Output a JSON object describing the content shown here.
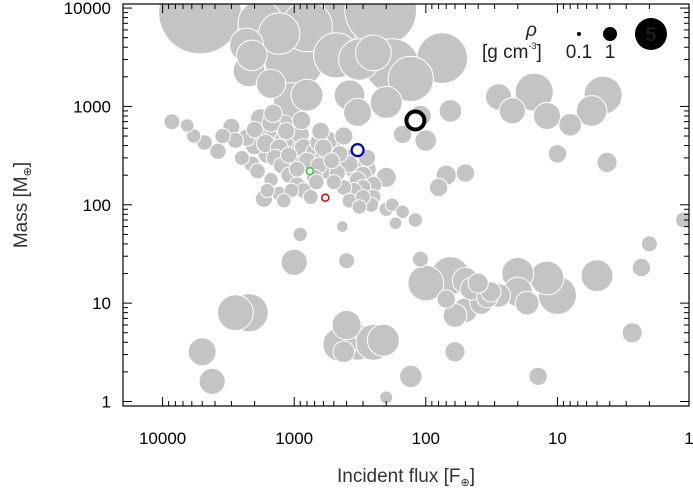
{
  "chart_data": {
    "type": "scatter",
    "xlabel": "Incident flux [F",
    "xlabel_sub": "⊕",
    "xlabel_end": "]",
    "ylabel": "Mass [M",
    "ylabel_sub": "⊕",
    "ylabel_end": "]",
    "x_scale": "log",
    "y_scale": "log",
    "x_reversed": true,
    "xlim": [
      20000,
      1
    ],
    "ylim": [
      0.9,
      11000
    ],
    "x_ticks": [
      {
        "value": 10000,
        "label": "10000"
      },
      {
        "value": 1000,
        "label": "1000"
      },
      {
        "value": 100,
        "label": "100"
      },
      {
        "value": 10,
        "label": "10"
      },
      {
        "value": 1,
        "label": "1"
      }
    ],
    "y_ticks": [
      {
        "value": 1,
        "label": "1"
      },
      {
        "value": 10,
        "label": "10"
      },
      {
        "value": 100,
        "label": "100"
      },
      {
        "value": 1000,
        "label": "1000"
      },
      {
        "value": 10000,
        "label": "10000"
      }
    ],
    "legend": {
      "position": "top-right",
      "title_symbol": "ρ",
      "unit_label": "[g cm",
      "unit_exp": "-3",
      "unit_end": "]",
      "entries": [
        {
          "rho": 0.1,
          "label": "0.1"
        },
        {
          "rho": 1,
          "label": "1"
        },
        {
          "rho": 5,
          "label": "5"
        }
      ]
    },
    "colors": {
      "planets": "#c4c4c4",
      "highlight_black": "#000000",
      "highlight_blue": "#0000cc",
      "highlight_green": "#33cc33",
      "highlight_red": "#dd0000"
    },
    "highlighted": [
      {
        "name": "black",
        "flux": 120,
        "mass": 720,
        "color": "#000000"
      },
      {
        "name": "blue",
        "flux": 330,
        "mass": 360,
        "color": "#0000cc"
      },
      {
        "name": "green",
        "flux": 760,
        "mass": 220,
        "color": "#33cc33"
      },
      {
        "name": "red",
        "flux": 580,
        "mass": 118,
        "color": "#dd0000"
      }
    ],
    "points": [
      [
        5200,
        9000,
        0.15
      ],
      [
        1100,
        9500,
        0.2
      ],
      [
        680,
        9000,
        0.12
      ],
      [
        480,
        10000,
        0.1
      ],
      [
        220,
        9500,
        0.2
      ],
      [
        1800,
        7000,
        0.5
      ],
      [
        800,
        6500,
        0.4
      ],
      [
        1300,
        5500,
        0.6
      ],
      [
        1000,
        2900,
        0.3
      ],
      [
        480,
        3300,
        0.5
      ],
      [
        320,
        3000,
        0.6
      ],
      [
        180,
        2600,
        0.35
      ],
      [
        75,
        3100,
        0.4
      ],
      [
        130,
        1900,
        0.5
      ],
      [
        2300,
        4200,
        0.9
      ],
      [
        2200,
        2300,
        1.0
      ],
      [
        2100,
        3300,
        1.1
      ],
      [
        1500,
        1700,
        1.2
      ],
      [
        1050,
        1150,
        0.8
      ],
      [
        800,
        1300,
        1.0
      ],
      [
        380,
        1300,
        1.1
      ],
      [
        330,
        870,
        1.3
      ],
      [
        200,
        1100,
        1.0
      ],
      [
        250,
        3500,
        0.8
      ],
      [
        28,
        1250,
        1.5
      ],
      [
        4.5,
        1300,
        0.7
      ],
      [
        5.5,
        900,
        1.1
      ],
      [
        12,
        800,
        1.4
      ],
      [
        15,
        1400,
        0.7
      ],
      [
        8,
        650,
        2.0
      ],
      [
        4.2,
        270,
        2.5
      ],
      [
        65,
        900,
        2.0
      ],
      [
        22,
        900,
        1.5
      ],
      [
        10,
        330,
        3.0
      ],
      [
        80,
        150,
        3.0
      ],
      [
        70,
        200,
        2.5
      ],
      [
        50,
        210,
        3.0
      ],
      [
        110,
        800,
        2.2
      ],
      [
        100,
        450,
        2.2
      ],
      [
        150,
        520,
        3.0
      ],
      [
        1.1,
        70,
        4.0
      ],
      [
        2,
        40,
        4.0
      ],
      [
        2.3,
        23,
        3.0
      ],
      [
        280,
        230,
        3.0
      ],
      [
        200,
        190,
        2.5
      ],
      [
        1700,
        600,
        2.5
      ],
      [
        1400,
        500,
        2.5
      ],
      [
        1600,
        330,
        2.8
      ],
      [
        2000,
        400,
        3.0
      ],
      [
        1800,
        750,
        2.5
      ],
      [
        1500,
        680,
        3.0
      ],
      [
        1200,
        650,
        2.6
      ],
      [
        1000,
        600,
        2.5
      ],
      [
        900,
        520,
        3.0
      ],
      [
        1200,
        450,
        2.7
      ],
      [
        1050,
        400,
        2.4
      ],
      [
        850,
        380,
        3.0
      ],
      [
        700,
        340,
        3.1
      ],
      [
        650,
        430,
        3.2
      ],
      [
        550,
        450,
        3.0
      ],
      [
        500,
        380,
        2.7
      ],
      [
        600,
        300,
        3.2
      ],
      [
        450,
        260,
        3.5
      ],
      [
        400,
        300,
        3.3
      ],
      [
        350,
        230,
        3.0
      ],
      [
        300,
        200,
        3.2
      ],
      [
        250,
        160,
        3.6
      ],
      [
        1400,
        300,
        3.5
      ],
      [
        1250,
        250,
        3.8
      ],
      [
        1100,
        200,
        4.0
      ],
      [
        950,
        160,
        4.0
      ],
      [
        850,
        140,
        4.2
      ],
      [
        1500,
        180,
        5.0
      ],
      [
        1300,
        130,
        4.8
      ],
      [
        1600,
        140,
        5.0
      ],
      [
        3000,
        620,
        3.5
      ],
      [
        2800,
        450,
        4.0
      ],
      [
        3500,
        500,
        4.2
      ],
      [
        3800,
        350,
        3.8
      ],
      [
        4800,
        430,
        4.2
      ],
      [
        5800,
        500,
        5.0
      ],
      [
        6500,
        640,
        5.5
      ],
      [
        8500,
        700,
        4.0
      ],
      [
        2500,
        300,
        4.5
      ],
      [
        2100,
        260,
        4.0
      ],
      [
        1900,
        220,
        4.2
      ],
      [
        1700,
        115,
        3.5
      ],
      [
        700,
        190,
        4.0
      ],
      [
        500,
        170,
        4.5
      ],
      [
        420,
        150,
        4.2
      ],
      [
        380,
        110,
        4.5
      ],
      [
        320,
        95,
        5.0
      ],
      [
        260,
        100,
        4.5
      ],
      [
        200,
        90,
        5.0
      ],
      [
        180,
        100,
        5.5
      ],
      [
        150,
        85,
        5.5
      ],
      [
        170,
        65,
        6.5
      ],
      [
        430,
        60,
        7.5
      ],
      [
        120,
        70,
        5.0
      ],
      [
        1000,
        260,
        3.5
      ],
      [
        800,
        280,
        3.5
      ],
      [
        1100,
        320,
        3.8
      ],
      [
        950,
        230,
        4.0
      ],
      [
        650,
        250,
        3.8
      ],
      [
        560,
        220,
        3.6
      ],
      [
        470,
        210,
        4.0
      ],
      [
        520,
        280,
        4.0
      ],
      [
        450,
        330,
        3.8
      ],
      [
        380,
        260,
        3.5
      ],
      [
        330,
        180,
        3.8
      ],
      [
        280,
        300,
        3.5
      ],
      [
        680,
        170,
        4.2
      ],
      [
        750,
        120,
        4.6
      ],
      [
        1200,
        110,
        5.0
      ],
      [
        1050,
        140,
        4.8
      ],
      [
        2000,
        580,
        3.6
      ],
      [
        2300,
        480,
        3.5
      ],
      [
        1150,
        560,
        3.4
      ],
      [
        1450,
        850,
        3.0
      ],
      [
        1650,
        420,
        3.0
      ],
      [
        630,
        560,
        3.2
      ],
      [
        420,
        500,
        3.1
      ],
      [
        880,
        720,
        3.0
      ],
      [
        1300,
        380,
        3.2
      ],
      [
        600,
        380,
        3.3
      ],
      [
        900,
        50,
        5.0
      ],
      [
        300,
        150,
        4.0
      ],
      [
        250,
        120,
        4.4
      ],
      [
        350,
        140,
        4.1
      ],
      [
        300,
        120,
        4.5
      ],
      [
        1000,
        26,
        1.5
      ],
      [
        2800,
        8,
        0.8
      ],
      [
        2200,
        8,
        0.7
      ],
      [
        5000,
        3.2,
        1.3
      ],
      [
        4200,
        1.6,
        1.5
      ],
      [
        330,
        4.0,
        0.8
      ],
      [
        250,
        4.0,
        0.8
      ],
      [
        450,
        3.8,
        0.9
      ],
      [
        210,
        4.2,
        1.0
      ],
      [
        400,
        6.0,
        1.2
      ],
      [
        420,
        3.2,
        2.2
      ],
      [
        130,
        1.8,
        2.0
      ],
      [
        60,
        3.2,
        2.5
      ],
      [
        60,
        7.5,
        1.8
      ],
      [
        50,
        8.5,
        1.7
      ],
      [
        100,
        16,
        0.8
      ],
      [
        65,
        19,
        0.7
      ],
      [
        20,
        20,
        1.0
      ],
      [
        12,
        18,
        0.9
      ],
      [
        10,
        12,
        0.7
      ],
      [
        5,
        19,
        1.0
      ],
      [
        20,
        13,
        1.2
      ],
      [
        28,
        12,
        1.8
      ],
      [
        17,
        10,
        1.8
      ],
      [
        38,
        10,
        2.0
      ],
      [
        34,
        11.5,
        2.3
      ],
      [
        45,
        14,
        2.0
      ],
      [
        32,
        13,
        2.5
      ],
      [
        50,
        17,
        1.5
      ],
      [
        40,
        16,
        2.5
      ],
      [
        14,
        1.8,
        3.0
      ],
      [
        2.7,
        5.0,
        2.5
      ],
      [
        400,
        27,
        4.0
      ],
      [
        110,
        28,
        4.0
      ],
      [
        1,
        70,
        3.5
      ],
      [
        200,
        1.1,
        6.0
      ],
      [
        70,
        11,
        3.0
      ]
    ]
  }
}
